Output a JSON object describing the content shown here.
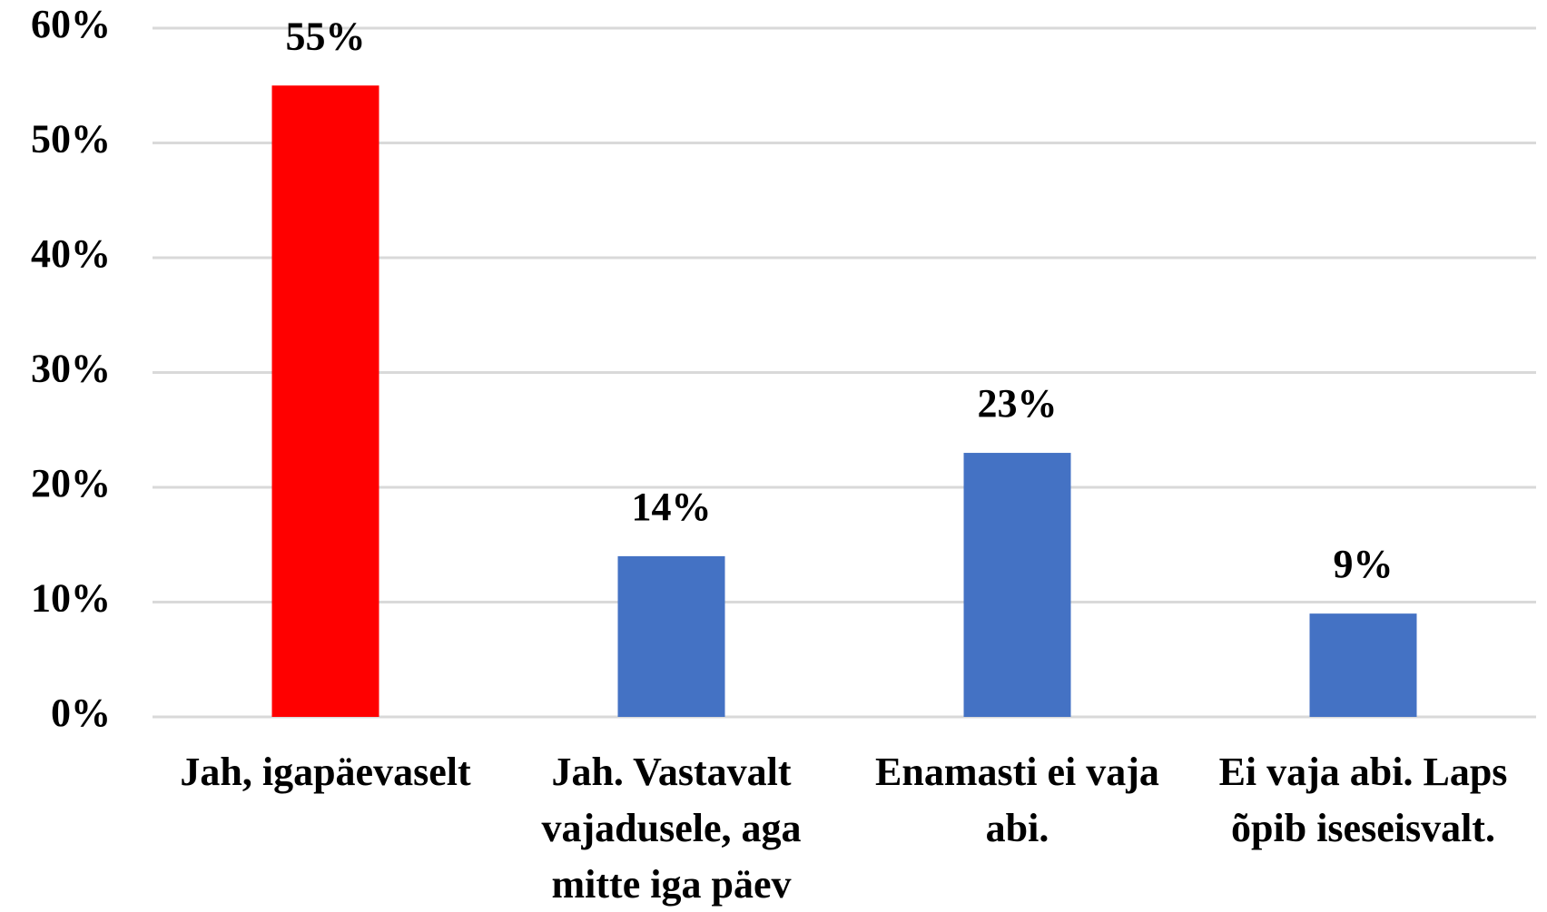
{
  "chart_data": {
    "type": "bar",
    "categories": [
      "Jah, igapäevaselt",
      "Jah. Vastavalt vajadusele, aga mitte iga päev",
      "Enamasti ei vaja abi.",
      "Ei vaja abi. Laps õpib iseseisvalt."
    ],
    "values": [
      55,
      14,
      23,
      9
    ],
    "value_labels": [
      "55%",
      "14%",
      "23%",
      "9%"
    ],
    "colors": [
      "#ff0000",
      "#4472c4",
      "#4472c4",
      "#4472c4"
    ],
    "ylim": [
      0,
      60
    ],
    "yticks": [
      {
        "value": 0,
        "label": "0%"
      },
      {
        "value": 10,
        "label": "10%"
      },
      {
        "value": 20,
        "label": "20%"
      },
      {
        "value": 30,
        "label": "30%"
      },
      {
        "value": 40,
        "label": "40%"
      },
      {
        "value": 50,
        "label": "50%"
      },
      {
        "value": 60,
        "label": "60%"
      }
    ],
    "grid": true
  }
}
